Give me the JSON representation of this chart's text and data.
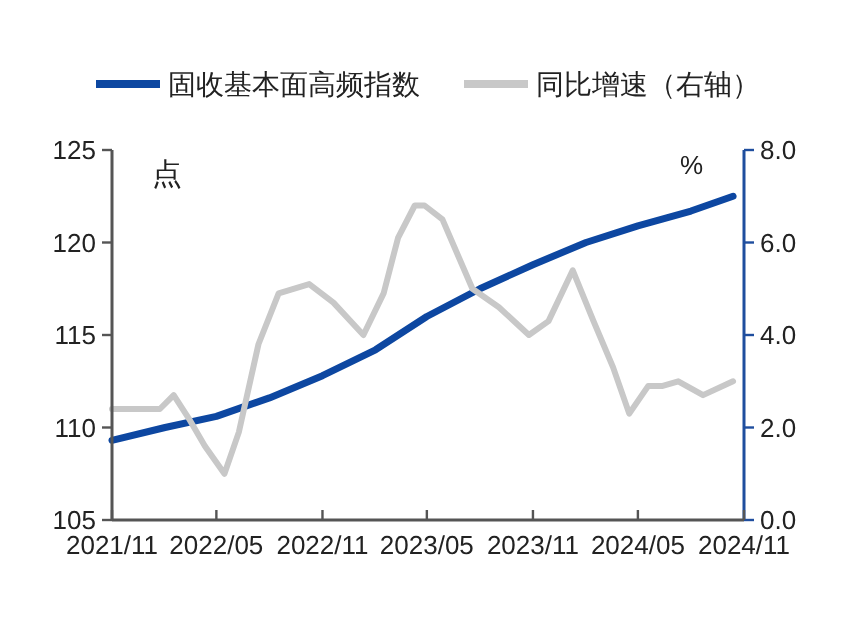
{
  "chart_data": {
    "type": "line",
    "ylabel": "点",
    "y2label": "%",
    "legend": "top",
    "grid": false,
    "xlim": [
      "2021-11-01",
      "2024-11-01"
    ],
    "xticks": [
      {
        "value": "2021-11",
        "label": "2021/11"
      },
      {
        "value": "2022-05",
        "label": "2022/05"
      },
      {
        "value": "2022-11",
        "label": "2022/11"
      },
      {
        "value": "2023-05",
        "label": "2023/05"
      },
      {
        "value": "2023-11",
        "label": "2023/11"
      },
      {
        "value": "2024-05",
        "label": "2024/05"
      },
      {
        "value": "2024-11",
        "label": "2024/11"
      }
    ],
    "ylim": [
      105,
      125
    ],
    "yticks": [
      105,
      110,
      115,
      120,
      125
    ],
    "y2lim": [
      0,
      8
    ],
    "y2ticks": [
      {
        "value": 0,
        "label": "0.0"
      },
      {
        "value": 2,
        "label": "2.0"
      },
      {
        "value": 4,
        "label": "4.0"
      },
      {
        "value": 6,
        "label": "6.0"
      },
      {
        "value": 8,
        "label": "8.0"
      }
    ],
    "series": [
      {
        "name": "固收基本面高频指数",
        "color": "#0d47a1",
        "x": [
          "2021-11-01",
          "2022-02-01",
          "2022-05-01",
          "2022-08-01",
          "2022-11-01",
          "2023-02-01",
          "2023-05-01",
          "2023-08-01",
          "2023-11-01",
          "2024-02-01",
          "2024-05-01",
          "2024-08-01",
          "2024-10-13"
        ],
        "values": [
          109.3,
          110.0,
          110.6,
          111.6,
          112.8,
          114.2,
          116.0,
          117.5,
          118.8,
          120.0,
          120.9,
          121.7,
          122.5
        ]
      },
      {
        "name": "同比增速（右轴）",
        "color": "#c8c8c8",
        "axis": "y2",
        "x": [
          "2021-11-01",
          "2021-12-09",
          "2022-01-23",
          "2022-02-16",
          "2022-03-14",
          "2022-04-11",
          "2022-05-15",
          "2022-06-09",
          "2022-07-13",
          "2022-08-17",
          "2022-10-09",
          "2022-11-20",
          "2023-01-11",
          "2023-02-15",
          "2023-03-12",
          "2023-04-10",
          "2023-04-27",
          "2023-05-28",
          "2023-07-19",
          "2023-09-03",
          "2023-10-25",
          "2023-11-28",
          "2024-01-09",
          "2024-02-14",
          "2024-03-19",
          "2024-04-16",
          "2024-05-19",
          "2024-06-13",
          "2024-07-10",
          "2024-08-22",
          "2024-10-13"
        ],
        "values": [
          2.4,
          2.4,
          2.4,
          2.7,
          2.2,
          1.6,
          1.0,
          1.9,
          3.8,
          4.9,
          5.1,
          4.7,
          4.0,
          4.9,
          6.1,
          6.8,
          6.8,
          6.5,
          5.0,
          4.6,
          4.0,
          4.3,
          5.4,
          4.3,
          3.3,
          2.3,
          2.9,
          2.9,
          3.0,
          2.7,
          3.0
        ]
      }
    ]
  }
}
